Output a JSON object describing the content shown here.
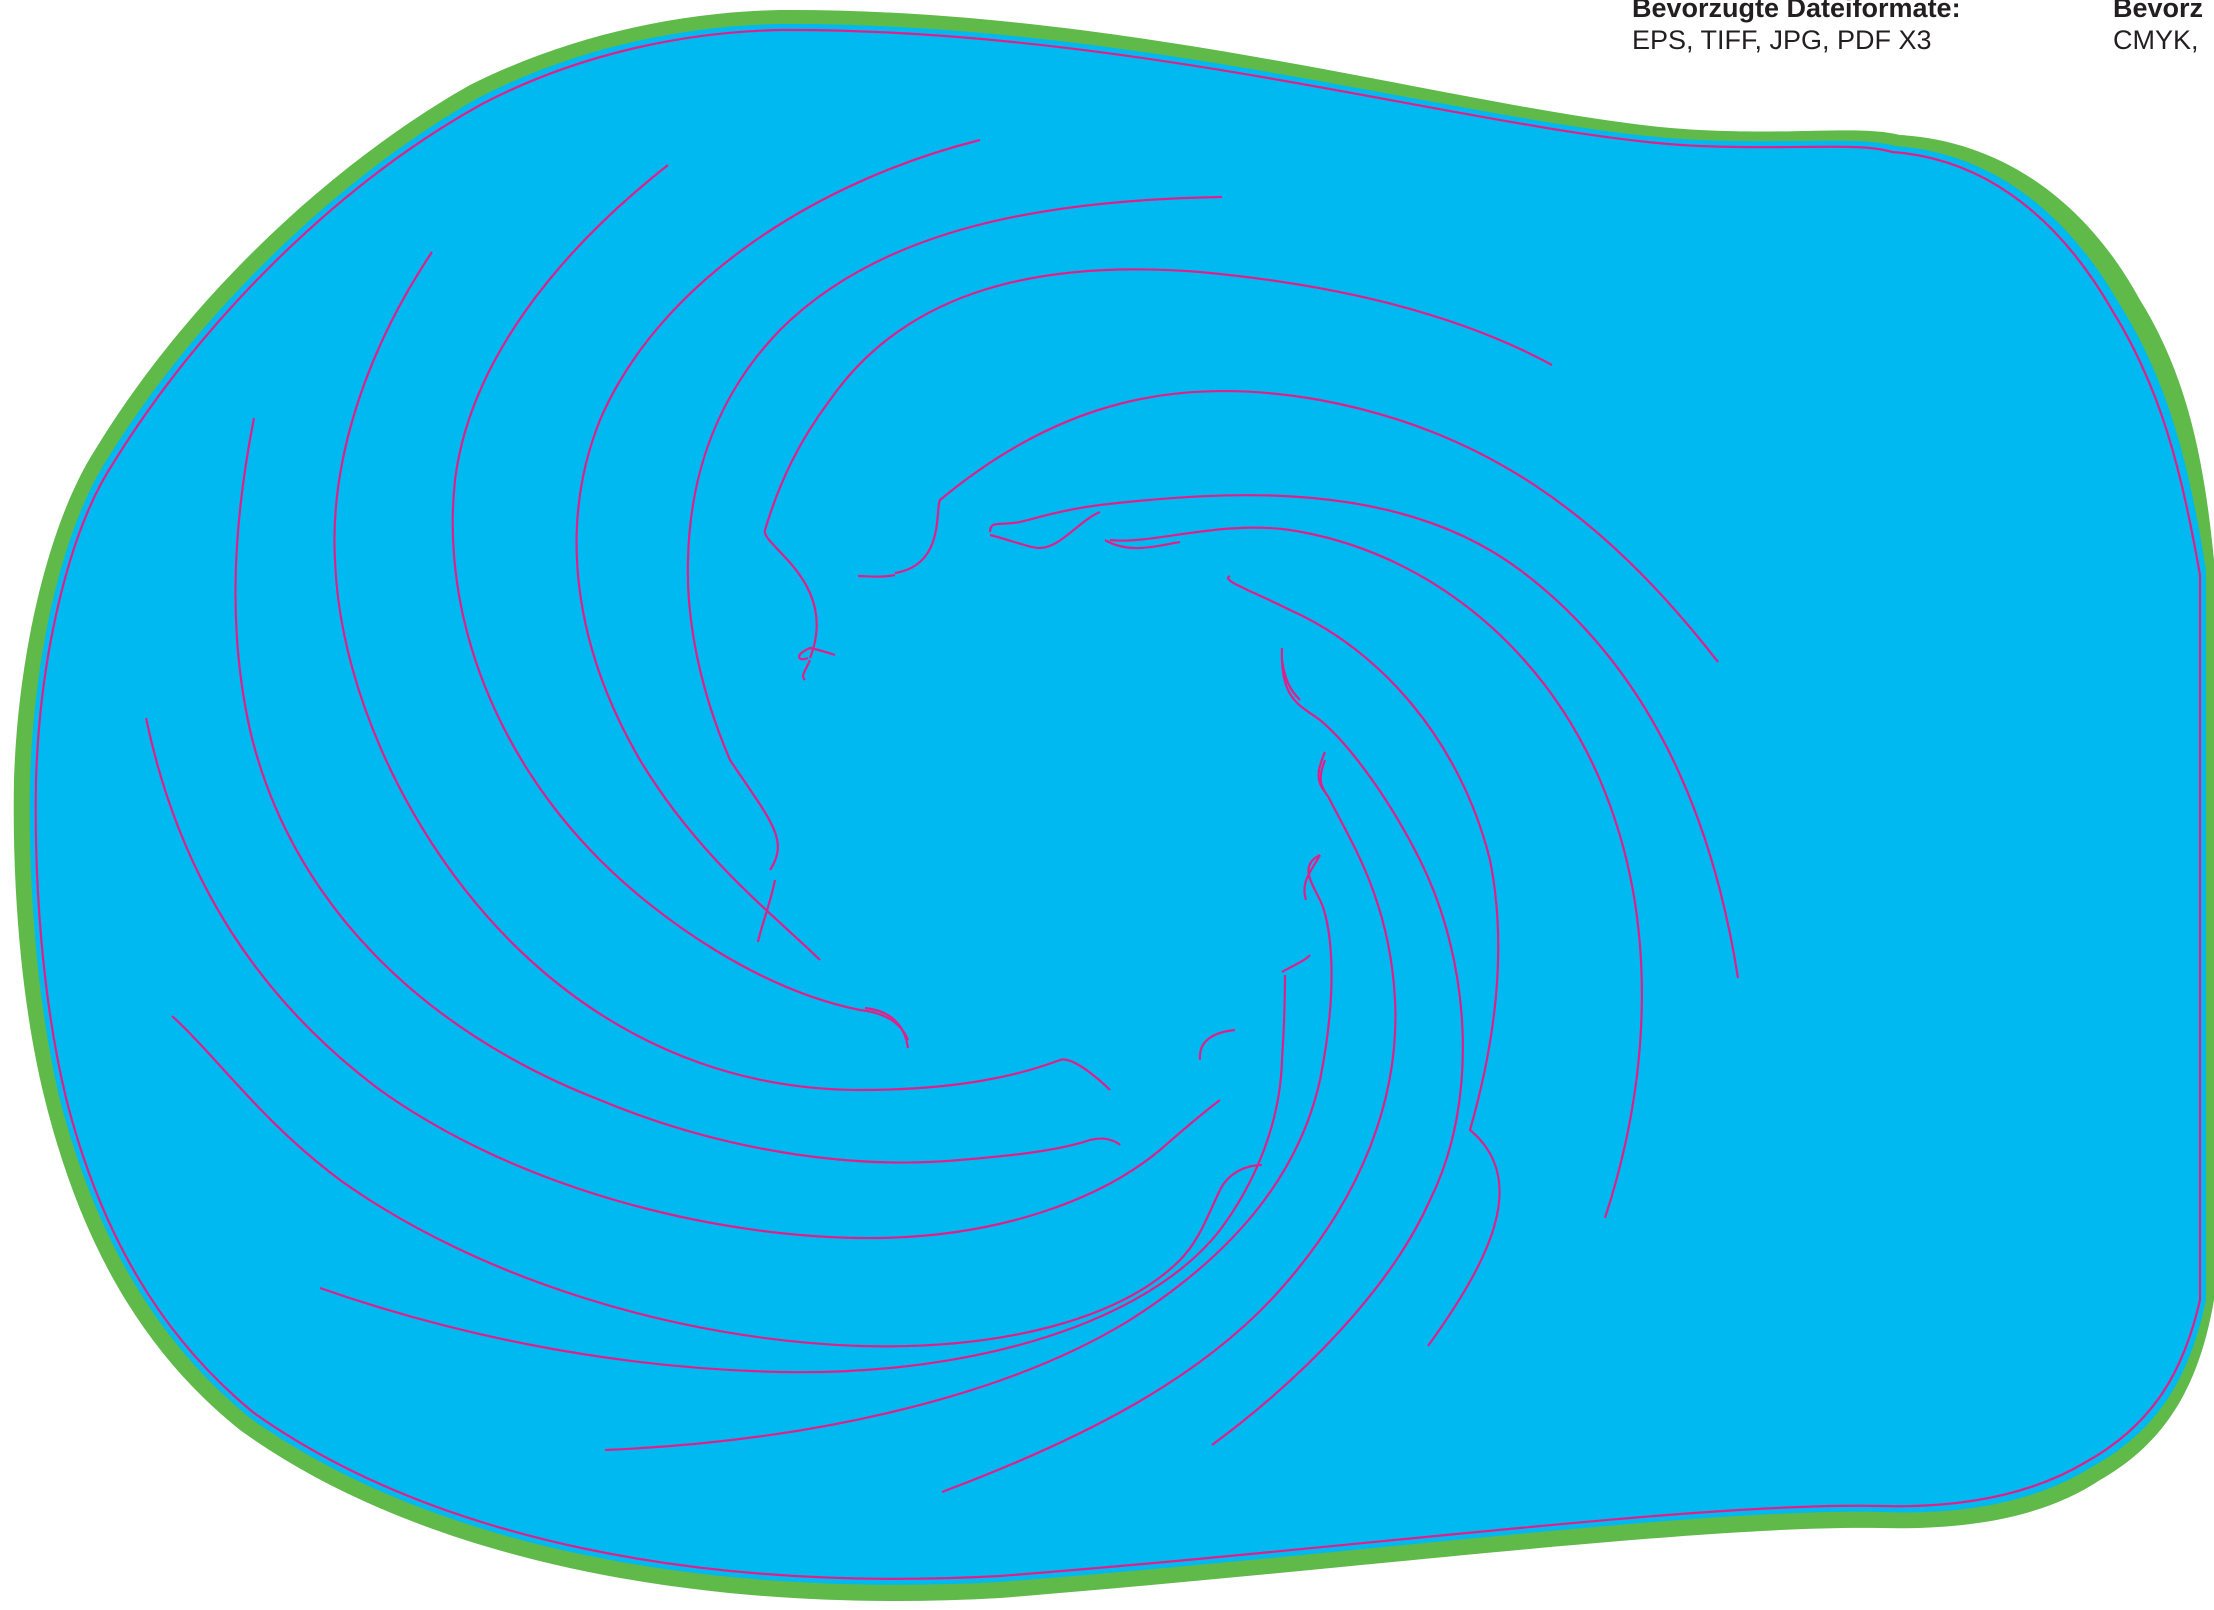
{
  "info": {
    "formats_heading": "Bevorzugte Dateiformate:",
    "formats_value": "EPS, TIFF, JPG, PDF X3",
    "color_heading": "Bevorz",
    "color_value": "CMYK,"
  },
  "colors": {
    "background": "#ffffff",
    "border": "#5fba4a",
    "fill": "#00b9f1",
    "cutline": "#e0208a"
  },
  "icons": {
    "pool": "pool-shape-icon",
    "swirl": "swirl-lines-icon"
  }
}
